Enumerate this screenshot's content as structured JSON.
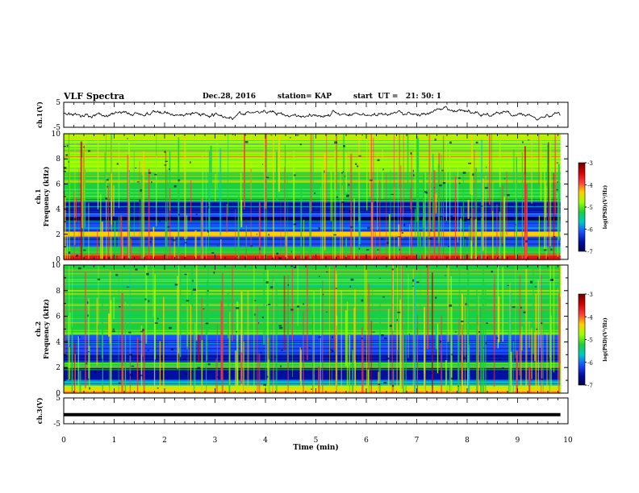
{
  "header": {
    "title": "VLF Spectra",
    "date": "Dec.28, 2016",
    "station": "station= KAP",
    "start": "start  UT =   21: 50: 1"
  },
  "colorbar": {
    "label": "log(PSD)(V²/Hz)",
    "ticks": [
      "-3",
      "-4",
      "-5",
      "-6",
      "-7"
    ],
    "colors": [
      "#6a0000",
      "#d00000",
      "#ff3c3c",
      "#ffd000",
      "#9cff00",
      "#1ccf3c",
      "#00c8c8",
      "#1c50ff",
      "#0010a0",
      "#000050"
    ]
  },
  "chart_data": [
    {
      "type": "line",
      "panel": "ch.1",
      "ylabel": "ch.1(V)",
      "ylim": [
        -5,
        5
      ],
      "yticks": [
        "5",
        "-5"
      ],
      "xlim": [
        0,
        10
      ],
      "color": "#000000",
      "level": 0.5,
      "noise": "dense random fluctuation between about -4 and 4 V"
    },
    {
      "type": "heatmap",
      "panel": "ch.1 spectrogram",
      "ylabel": "ch.1 Frequency (kHz)",
      "ylim": [
        0,
        10
      ],
      "yticks": [
        "0",
        "2",
        "4",
        "6",
        "8",
        "10"
      ],
      "xlim": [
        0,
        10
      ],
      "data_end_min": 9.85,
      "zlim": [
        -7,
        -3
      ],
      "bands": [
        {
          "from": 0,
          "to": 0.5,
          "level": -3.8
        },
        {
          "from": 0.5,
          "to": 1.0,
          "level": -5.4
        },
        {
          "from": 1.0,
          "to": 1.8,
          "level": -6.2
        },
        {
          "from": 1.8,
          "to": 2.2,
          "level": -4.3
        },
        {
          "from": 2.2,
          "to": 3.0,
          "level": -6.3
        },
        {
          "from": 3.0,
          "to": 3.4,
          "level": -6.9
        },
        {
          "from": 3.4,
          "to": 3.7,
          "level": -5.9
        },
        {
          "from": 3.7,
          "to": 4.6,
          "level": -6.6
        },
        {
          "from": 4.6,
          "to": 5.6,
          "level": -5.3
        },
        {
          "from": 5.6,
          "to": 7.0,
          "level": -5.0
        },
        {
          "from": 7.0,
          "to": 10.0,
          "level": -4.9
        }
      ]
    },
    {
      "type": "heatmap",
      "panel": "ch.2 spectrogram",
      "ylabel": "ch.2 Frequency (kHz)",
      "ylim": [
        0,
        10
      ],
      "yticks": [
        "0",
        "2",
        "4",
        "6",
        "8",
        "10"
      ],
      "xlim": [
        0,
        10
      ],
      "data_end_min": 9.85,
      "zlim": [
        -7,
        -3
      ],
      "bands": [
        {
          "from": 0,
          "to": 0.6,
          "level": -4.2
        },
        {
          "from": 0.6,
          "to": 1.0,
          "level": -5.6
        },
        {
          "from": 1.0,
          "to": 2.0,
          "level": -6.4
        },
        {
          "from": 2.0,
          "to": 2.4,
          "level": -5.0
        },
        {
          "from": 2.4,
          "to": 3.0,
          "level": -6.5
        },
        {
          "from": 3.0,
          "to": 3.7,
          "level": -5.9
        },
        {
          "from": 3.7,
          "to": 4.6,
          "level": -6.3
        },
        {
          "from": 4.6,
          "to": 6.5,
          "level": -5.1
        },
        {
          "from": 6.5,
          "to": 10.0,
          "level": -5.0
        }
      ]
    },
    {
      "type": "line",
      "panel": "ch.3",
      "ylabel": "ch.3(V)",
      "ylim": [
        -5,
        5
      ],
      "yticks": [
        "5",
        "-5"
      ],
      "xlim": [
        0,
        10
      ],
      "color": "#000000",
      "x": [
        0,
        9.85
      ],
      "y": [
        -1.5,
        -1.5
      ]
    }
  ],
  "xaxis": {
    "label": "Time  (min)",
    "ticks": [
      "0",
      "1",
      "2",
      "3",
      "4",
      "5",
      "6",
      "7",
      "8",
      "9",
      "10"
    ]
  }
}
